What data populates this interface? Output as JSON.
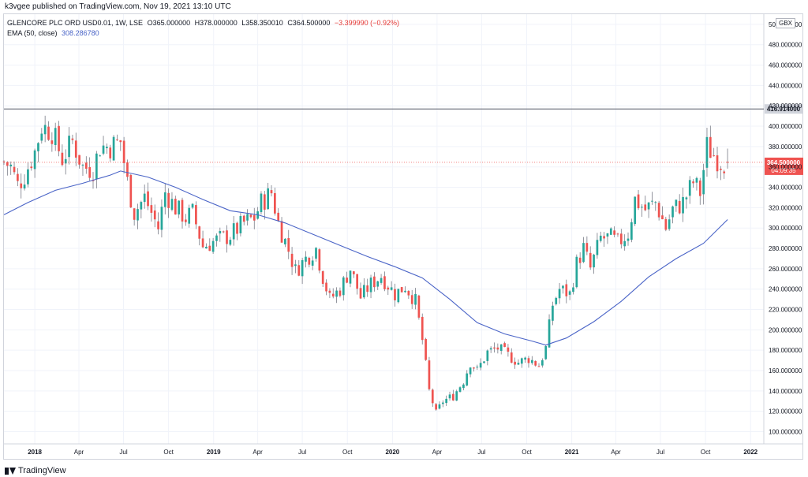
{
  "header": {
    "credit": "k3vgee published on TradingView.com, Nov 19, 2021 13:10 UTC"
  },
  "legend": {
    "symbol": "GLENCORE PLC ORD USD0.01, 1W, LSE",
    "open": "O365.000000",
    "high": "H378.000000",
    "low": "L358.350010",
    "close": "C364.500000",
    "change": "−3.399990 (−0.92%)",
    "ema_label": "EMA (50, close)",
    "ema_value": "308.286780"
  },
  "currency_badge": "GBX",
  "footer": {
    "brand": "TradingView"
  },
  "colors": {
    "up": "#26a69a",
    "down": "#ef5350",
    "ema": "#4a64c7",
    "grid": "#f0f3fa",
    "resistance": "#787b86",
    "price_line": "#ef5350"
  },
  "chart_data": {
    "type": "candlestick",
    "interval": "1W",
    "y_scale": "linear",
    "ylim": [
      88,
      510
    ],
    "y_ticks": [
      100,
      120,
      140,
      160,
      180,
      200,
      220,
      240,
      260,
      280,
      300,
      320,
      340,
      360,
      380,
      400,
      420,
      440,
      460,
      480,
      500
    ],
    "y_tick_labels": [
      "100.000000",
      "120.000000",
      "140.000000",
      "160.000000",
      "180.000000",
      "200.000000",
      "220.000000",
      "240.000000",
      "260.000000",
      "280.000000",
      "300.000000",
      "320.000000",
      "340.000000",
      "360.000000",
      "380.000000",
      "400.000000",
      "420.000000",
      "440.000000",
      "460.000000",
      "480.000000",
      "500.000000"
    ],
    "x_ticks": [
      {
        "label": "2018",
        "date": "2018-01-01",
        "bold": true
      },
      {
        "label": "Apr",
        "date": "2018-04-01"
      },
      {
        "label": "Jul",
        "date": "2018-07-01"
      },
      {
        "label": "Oct",
        "date": "2018-10-01"
      },
      {
        "label": "2019",
        "date": "2019-01-01",
        "bold": true
      },
      {
        "label": "Apr",
        "date": "2019-04-01"
      },
      {
        "label": "Jul",
        "date": "2019-07-01"
      },
      {
        "label": "Oct",
        "date": "2019-10-01"
      },
      {
        "label": "2020",
        "date": "2020-01-01",
        "bold": true
      },
      {
        "label": "Apr",
        "date": "2020-04-01"
      },
      {
        "label": "Jul",
        "date": "2020-07-01"
      },
      {
        "label": "Oct",
        "date": "2020-10-01"
      },
      {
        "label": "2021",
        "date": "2021-01-01",
        "bold": true
      },
      {
        "label": "Apr",
        "date": "2021-04-01"
      },
      {
        "label": "Jul",
        "date": "2021-07-01"
      },
      {
        "label": "Oct",
        "date": "2021-10-01"
      },
      {
        "label": "2022",
        "date": "2022-01-01",
        "bold": true
      }
    ],
    "x_range": [
      "2017-10-30",
      "2022-01-28"
    ],
    "resistance_level": 416.914,
    "resistance_label": "416.914000",
    "last_price": 364.5,
    "last_price_label": "364.500000",
    "countdown": "04:09:35",
    "ema_series": [
      [
        "2017-10-30",
        313
      ],
      [
        "2017-12-18",
        325
      ],
      [
        "2018-02-12",
        337
      ],
      [
        "2018-04-09",
        344
      ],
      [
        "2018-06-04",
        352
      ],
      [
        "2018-06-25",
        356
      ],
      [
        "2018-08-20",
        350
      ],
      [
        "2018-10-15",
        340
      ],
      [
        "2018-12-10",
        328
      ],
      [
        "2019-02-04",
        317
      ],
      [
        "2019-04-01",
        313
      ],
      [
        "2019-05-27",
        305
      ],
      [
        "2019-07-22",
        294
      ],
      [
        "2019-09-16",
        283
      ],
      [
        "2019-11-11",
        272
      ],
      [
        "2020-01-06",
        262
      ],
      [
        "2020-03-02",
        251
      ],
      [
        "2020-04-27",
        230
      ],
      [
        "2020-06-22",
        207
      ],
      [
        "2020-08-17",
        196
      ],
      [
        "2020-10-12",
        189
      ],
      [
        "2020-11-09",
        185
      ],
      [
        "2020-12-21",
        192
      ],
      [
        "2021-02-15",
        208
      ],
      [
        "2021-04-12",
        228
      ],
      [
        "2021-06-07",
        252
      ],
      [
        "2021-08-02",
        270
      ],
      [
        "2021-09-27",
        285
      ],
      [
        "2021-11-15",
        308.3
      ]
    ],
    "anchors": [
      [
        "2017-10-30",
        365
      ],
      [
        "2017-11-13",
        360
      ],
      [
        "2017-11-27",
        342
      ],
      [
        "2017-12-11",
        352
      ],
      [
        "2018-01-01",
        375
      ],
      [
        "2018-01-15",
        400
      ],
      [
        "2018-02-05",
        395
      ],
      [
        "2018-02-26",
        368
      ],
      [
        "2018-03-19",
        385
      ],
      [
        "2018-04-09",
        360
      ],
      [
        "2018-04-30",
        358
      ],
      [
        "2018-05-14",
        380
      ],
      [
        "2018-06-04",
        380
      ],
      [
        "2018-06-25",
        385
      ],
      [
        "2018-07-09",
        345
      ],
      [
        "2018-07-23",
        315
      ],
      [
        "2018-08-13",
        330
      ],
      [
        "2018-09-10",
        300
      ],
      [
        "2018-09-24",
        335
      ],
      [
        "2018-10-15",
        320
      ],
      [
        "2018-11-05",
        310
      ],
      [
        "2018-11-19",
        315
      ],
      [
        "2018-12-10",
        282
      ],
      [
        "2019-01-07",
        288
      ],
      [
        "2019-02-04",
        293
      ],
      [
        "2019-03-04",
        305
      ],
      [
        "2019-03-25",
        310
      ],
      [
        "2019-04-08",
        325
      ],
      [
        "2019-04-29",
        335
      ],
      [
        "2019-05-13",
        305
      ],
      [
        "2019-06-03",
        278
      ],
      [
        "2019-06-17",
        258
      ],
      [
        "2019-07-08",
        270
      ],
      [
        "2019-07-29",
        280
      ],
      [
        "2019-08-12",
        252
      ],
      [
        "2019-08-26",
        230
      ],
      [
        "2019-09-16",
        240
      ],
      [
        "2019-10-07",
        260
      ],
      [
        "2019-10-28",
        232
      ],
      [
        "2019-11-18",
        245
      ],
      [
        "2019-12-09",
        253
      ],
      [
        "2020-01-06",
        235
      ],
      [
        "2020-01-27",
        243
      ],
      [
        "2020-02-17",
        228
      ],
      [
        "2020-03-02",
        190
      ],
      [
        "2020-03-16",
        140
      ],
      [
        "2020-03-30",
        118
      ],
      [
        "2020-04-13",
        130
      ],
      [
        "2020-05-04",
        135
      ],
      [
        "2020-05-25",
        150
      ],
      [
        "2020-06-08",
        168
      ],
      [
        "2020-06-22",
        160
      ],
      [
        "2020-07-13",
        178
      ],
      [
        "2020-08-03",
        182
      ],
      [
        "2020-08-24",
        175
      ],
      [
        "2020-09-14",
        168
      ],
      [
        "2020-10-05",
        172
      ],
      [
        "2020-10-26",
        165
      ],
      [
        "2020-11-09",
        182
      ],
      [
        "2020-11-23",
        225
      ],
      [
        "2020-12-07",
        240
      ],
      [
        "2020-12-28",
        235
      ],
      [
        "2021-01-11",
        265
      ],
      [
        "2021-01-25",
        280
      ],
      [
        "2021-02-08",
        260
      ],
      [
        "2021-03-01",
        290
      ],
      [
        "2021-03-22",
        290
      ],
      [
        "2021-04-05",
        285
      ],
      [
        "2021-04-26",
        295
      ],
      [
        "2021-05-10",
        328
      ],
      [
        "2021-05-31",
        318
      ],
      [
        "2021-06-21",
        325
      ],
      [
        "2021-07-12",
        300
      ],
      [
        "2021-07-26",
        318
      ],
      [
        "2021-08-16",
        325
      ],
      [
        "2021-09-06",
        345
      ],
      [
        "2021-09-20",
        335
      ],
      [
        "2021-10-04",
        380
      ],
      [
        "2021-10-18",
        372
      ],
      [
        "2021-11-01",
        365
      ],
      [
        "2021-11-15",
        364.5
      ]
    ]
  }
}
